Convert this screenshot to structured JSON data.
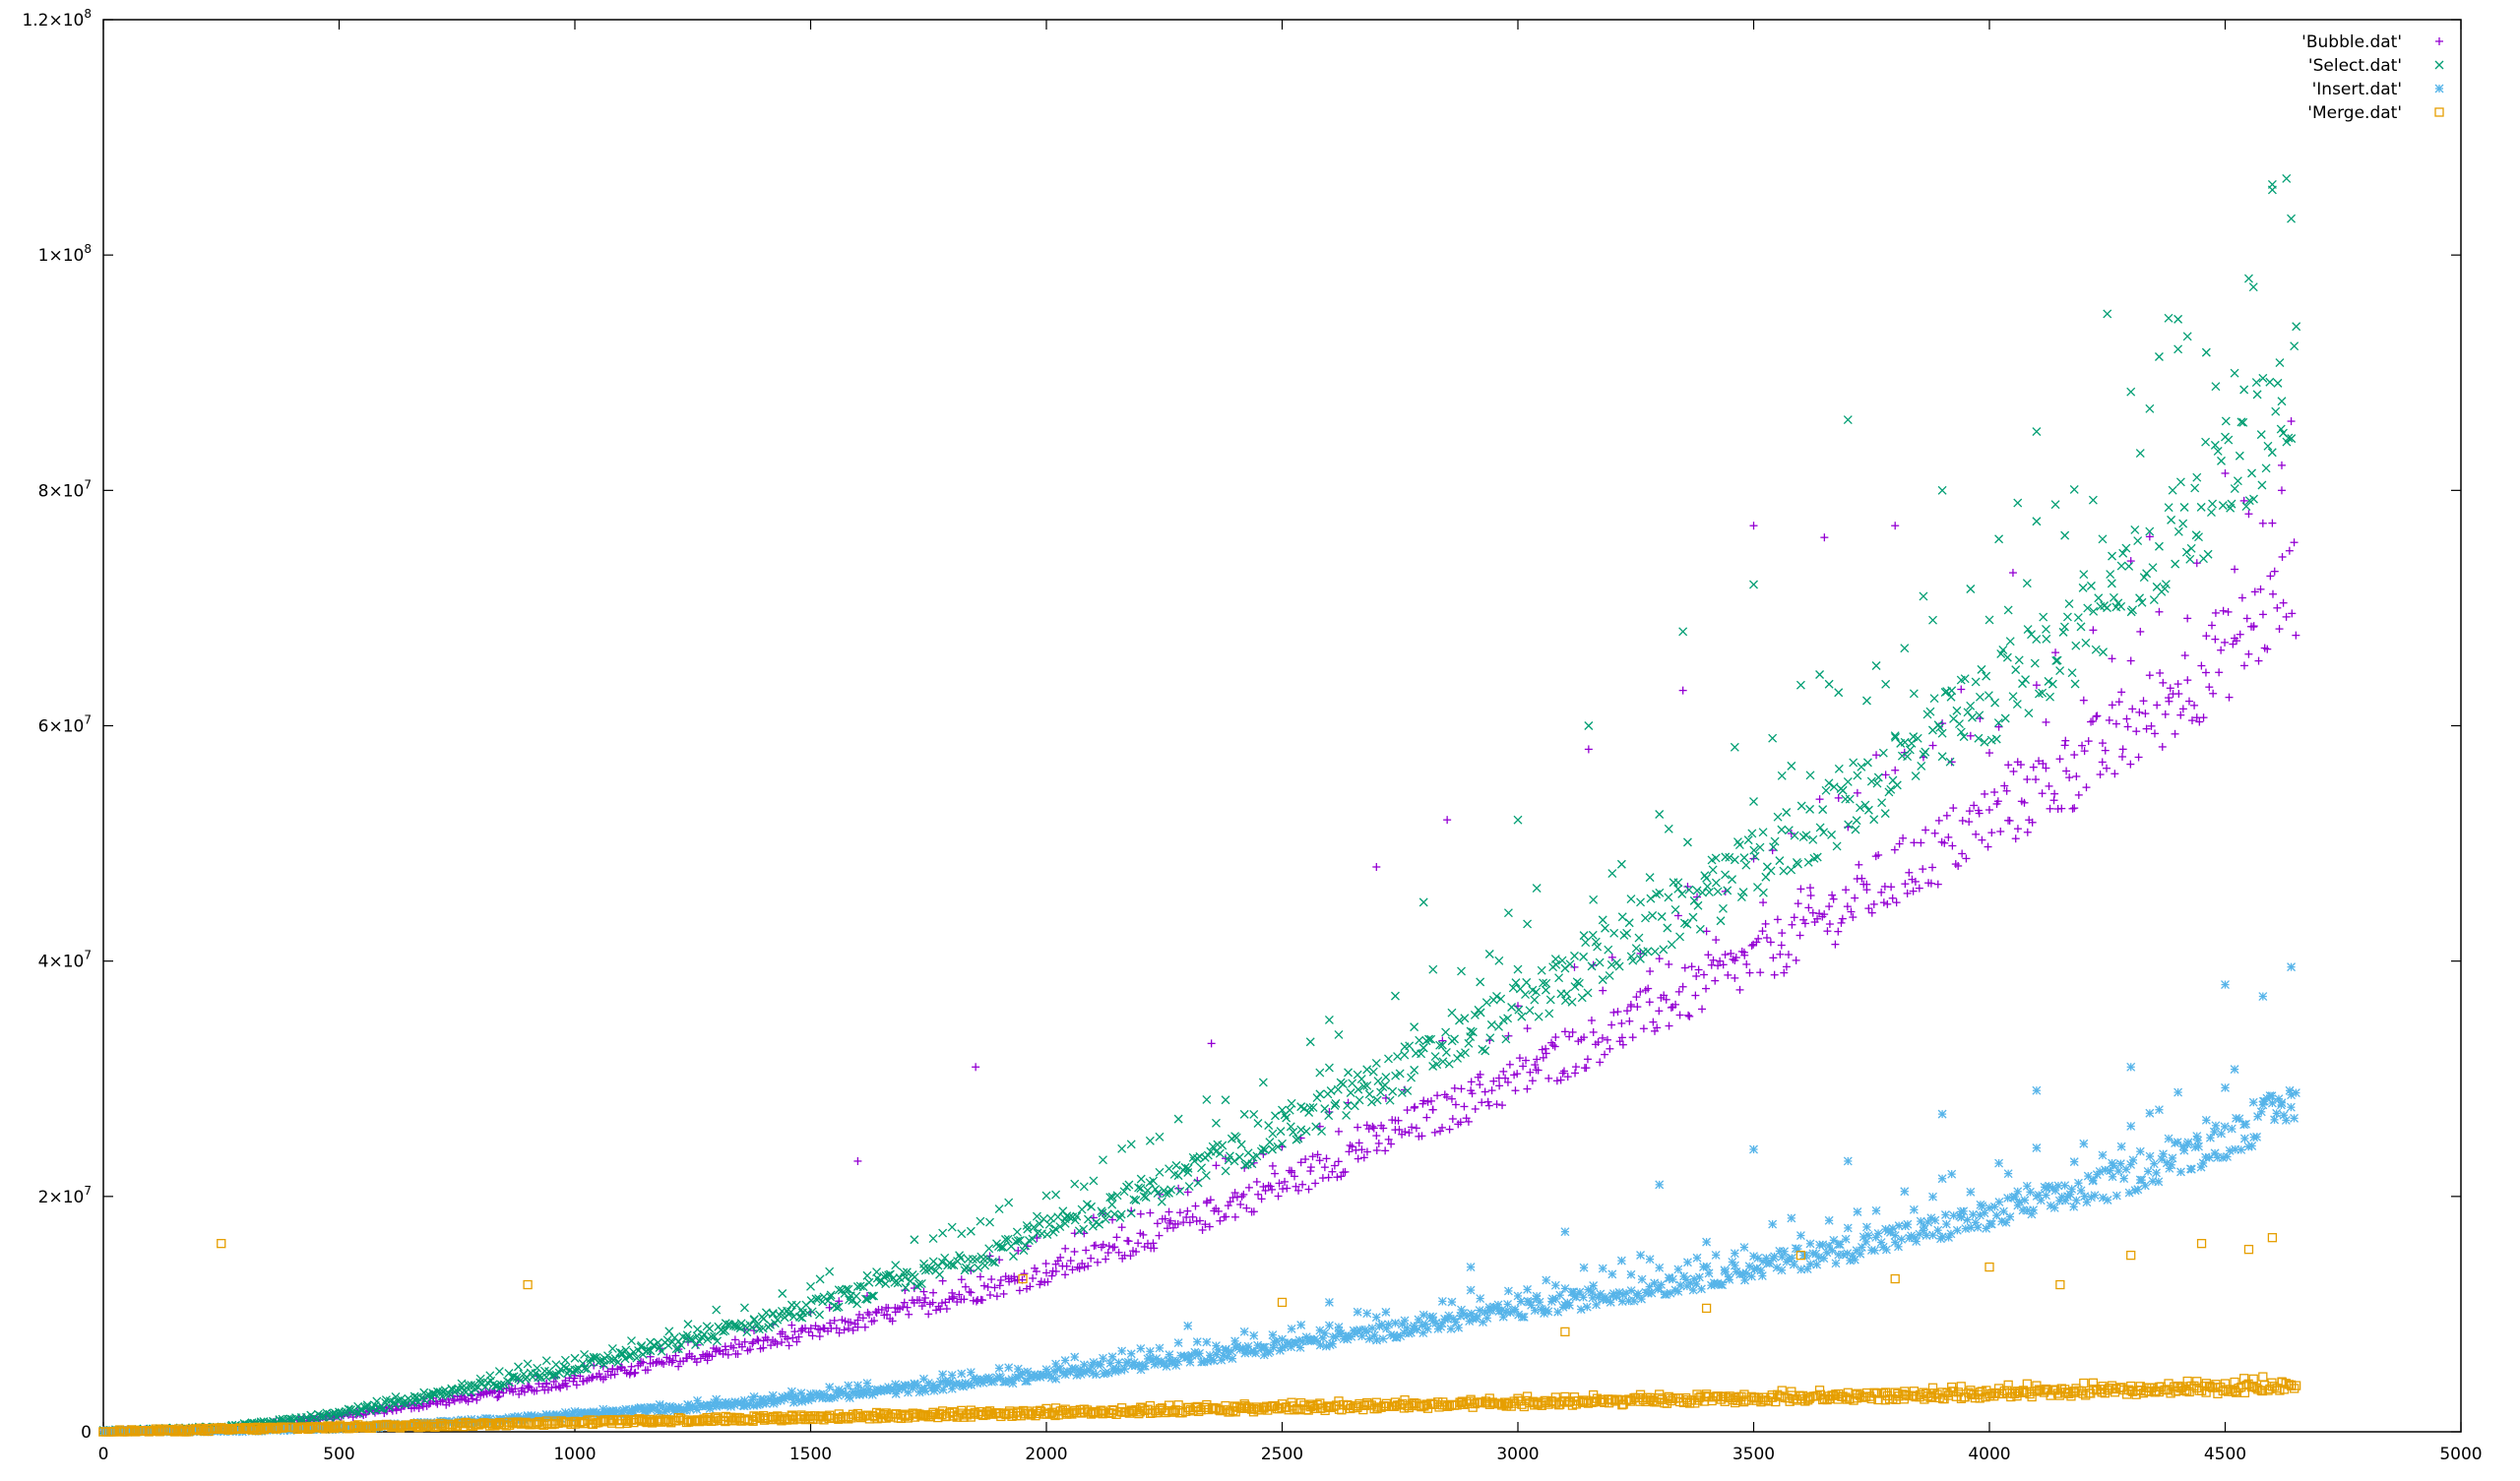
{
  "chart_data": {
    "type": "scatter",
    "title": "",
    "xlabel": "",
    "ylabel": "",
    "xlim": [
      0,
      5000
    ],
    "ylim": [
      0,
      120000000
    ],
    "grid": false,
    "legend_position": "top-right",
    "x_ticks": [
      {
        "value": 0,
        "label": "0"
      },
      {
        "value": 500,
        "label": "500"
      },
      {
        "value": 1000,
        "label": "1000"
      },
      {
        "value": 1500,
        "label": "1500"
      },
      {
        "value": 2000,
        "label": "2000"
      },
      {
        "value": 2500,
        "label": "2500"
      },
      {
        "value": 3000,
        "label": "3000"
      },
      {
        "value": 3500,
        "label": "3500"
      },
      {
        "value": 4000,
        "label": "4000"
      },
      {
        "value": 4500,
        "label": "4500"
      },
      {
        "value": 5000,
        "label": "5000"
      }
    ],
    "y_ticks": [
      {
        "value": 0,
        "mantissa": "0",
        "exponent": ""
      },
      {
        "value": 20000000,
        "mantissa": "2×10",
        "exponent": "7"
      },
      {
        "value": 40000000,
        "mantissa": "4×10",
        "exponent": "7"
      },
      {
        "value": 60000000,
        "mantissa": "6×10",
        "exponent": "7"
      },
      {
        "value": 80000000,
        "mantissa": "8×10",
        "exponent": "7"
      },
      {
        "value": 100000000,
        "mantissa": "1×10",
        "exponent": "8"
      },
      {
        "value": 120000000,
        "mantissa": "1.2×10",
        "exponent": "8"
      }
    ],
    "series": [
      {
        "name": "'Bubble.dat'",
        "color": "#9400d3",
        "marker": "plus",
        "x": [
          0,
          250,
          500,
          750,
          1000,
          1250,
          1500,
          1750,
          2000,
          2250,
          2500,
          2750,
          3000,
          3250,
          3500,
          3750,
          4000,
          4250,
          4500,
          4650
        ],
        "y": [
          0,
          200000,
          1300000,
          2700000,
          4300000,
          6300000,
          8300000,
          10800000,
          13500000,
          17000000,
          21000000,
          25500000,
          30000000,
          35000000,
          40000000,
          46000000,
          52000000,
          58000000,
          66000000,
          72000000
        ],
        "outliers_x": [
          1600,
          1850,
          2350,
          2700,
          2850,
          3150,
          3350,
          3500,
          3650,
          3800,
          4050,
          4300,
          4550,
          4620
        ],
        "outliers_y": [
          23000000,
          31000000,
          33000000,
          48000000,
          52000000,
          58000000,
          63000000,
          77000000,
          76000000,
          77000000,
          73000000,
          74000000,
          78000000,
          80000000
        ]
      },
      {
        "name": "'Select.dat'",
        "color": "#009e73",
        "marker": "cross",
        "x": [
          0,
          250,
          500,
          750,
          1000,
          1250,
          1500,
          1750,
          2000,
          2250,
          2500,
          2750,
          3000,
          3250,
          3500,
          3750,
          4000,
          4250,
          4500,
          4650
        ],
        "y": [
          0,
          300000,
          1500000,
          3400000,
          5500000,
          7800000,
          10500000,
          13500000,
          17000000,
          21000000,
          25500000,
          30500000,
          36000000,
          42000000,
          48000000,
          55000000,
          62000000,
          70000000,
          81000000,
          89000000
        ],
        "outliers_x": [
          2600,
          2800,
          3000,
          3150,
          3350,
          3500,
          3700,
          3900,
          4100,
          4250,
          4400,
          4550,
          4600,
          4630
        ],
        "outliers_y": [
          35000000,
          45000000,
          52000000,
          60000000,
          68000000,
          72000000,
          86000000,
          80000000,
          85000000,
          95000000,
          92000000,
          98000000,
          106000000,
          106500000
        ]
      },
      {
        "name": "'Insert.dat'",
        "color": "#56b4e9",
        "marker": "star",
        "x": [
          0,
          250,
          500,
          750,
          1000,
          1250,
          1500,
          1750,
          2000,
          2250,
          2500,
          2750,
          3000,
          3250,
          3500,
          3750,
          4000,
          4250,
          4500,
          4650
        ],
        "y": [
          0,
          100000,
          350000,
          800000,
          1400000,
          2100000,
          2900000,
          3800000,
          4800000,
          6000000,
          7300000,
          8700000,
          10300000,
          12000000,
          13900000,
          16000000,
          18300000,
          21000000,
          24800000,
          28000000
        ],
        "outliers_x": [
          2300,
          2600,
          2900,
          3100,
          3300,
          3500,
          3700,
          3900,
          4100,
          4300,
          4500,
          4580,
          4640
        ],
        "outliers_y": [
          9000000,
          11000000,
          14000000,
          17000000,
          21000000,
          24000000,
          23000000,
          27000000,
          29000000,
          31000000,
          38000000,
          37000000,
          39500000
        ]
      },
      {
        "name": "'Merge.dat'",
        "color": "#e69f00",
        "marker": "square",
        "x": [
          0,
          250,
          500,
          750,
          1000,
          1250,
          1500,
          1750,
          2000,
          2250,
          2500,
          2750,
          3000,
          3250,
          3500,
          3750,
          4000,
          4250,
          4500,
          4650
        ],
        "y": [
          0,
          200000,
          400000,
          600000,
          800000,
          1000000,
          1200000,
          1400000,
          1600000,
          1800000,
          2000000,
          2200000,
          2400000,
          2600000,
          2800000,
          3000000,
          3200000,
          3400000,
          3600000,
          3900000
        ],
        "outliers_x": [
          250,
          900,
          1950,
          2500,
          3100,
          3400,
          3600,
          3800,
          4000,
          4150,
          4300,
          4450,
          4550,
          4600
        ],
        "outliers_y": [
          16000000,
          12500000,
          13000000,
          11000000,
          8500000,
          10500000,
          15000000,
          13000000,
          14000000,
          12500000,
          15000000,
          16000000,
          15500000,
          16500000
        ]
      }
    ]
  }
}
